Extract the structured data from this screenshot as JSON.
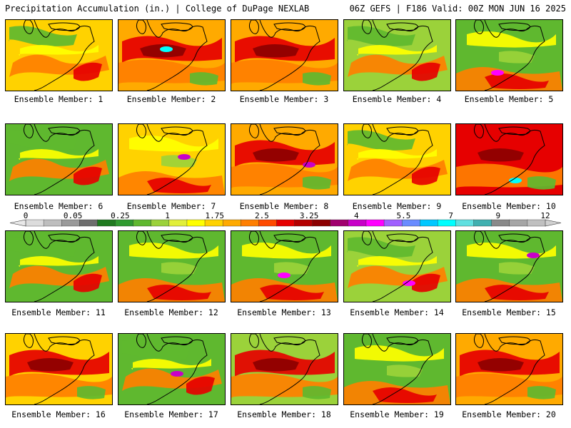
{
  "header": {
    "title": "Precipitation Accumulation (in.) | College of DuPage NEXLAB",
    "run_info": "06Z GEFS | F186 Valid: 00Z MON JUN 16 2025"
  },
  "colorbar": {
    "tick_labels": [
      "0",
      "0.05",
      "0.25",
      "1",
      "1.75",
      "2.5",
      "3.25",
      "4",
      "5.5",
      "7",
      "9",
      "12"
    ],
    "colors": [
      "#dcdcdc",
      "#bebebe",
      "#9a9a9a",
      "#6e6e6e",
      "#1f7a1f",
      "#2f9a2f",
      "#5fb82f",
      "#9bd23a",
      "#e1ef3a",
      "#ffff00",
      "#ffd200",
      "#ffaa00",
      "#ff7f00",
      "#ff4a00",
      "#e60000",
      "#b40000",
      "#8c0000",
      "#a0006e",
      "#c800c8",
      "#ff00ff",
      "#a060ff",
      "#6a8cff",
      "#00c8ff",
      "#00ffff",
      "#60e0e0",
      "#40b0b0",
      "#8a8a8a",
      "#a6a6a6",
      "#c0c0c0"
    ]
  },
  "members": [
    {
      "label": "Ensemble Member: 1",
      "base": "#ffd200",
      "pattern": "n"
    },
    {
      "label": "Ensemble Member: 2",
      "base": "#ffaa00",
      "pattern": "w",
      "hot": "#00ffff"
    },
    {
      "label": "Ensemble Member: 3",
      "base": "#ffaa00",
      "pattern": "w"
    },
    {
      "label": "Ensemble Member: 4",
      "base": "#9bd23a",
      "pattern": "n"
    },
    {
      "label": "Ensemble Member: 5",
      "base": "#5fb82f",
      "pattern": "s",
      "hot": "#ff00ff"
    },
    {
      "label": "Ensemble Member: 6",
      "base": "#5fb82f",
      "pattern": "n"
    },
    {
      "label": "Ensemble Member: 7",
      "base": "#ffd200",
      "pattern": "s",
      "hot": "#c800c8"
    },
    {
      "label": "Ensemble Member: 8",
      "base": "#ffaa00",
      "pattern": "w",
      "hot": "#c800c8"
    },
    {
      "label": "Ensemble Member: 9",
      "base": "#ffd200",
      "pattern": "n"
    },
    {
      "label": "Ensemble Member: 10",
      "base": "#e60000",
      "pattern": "w",
      "hot": "#00ffff"
    },
    {
      "label": "Ensemble Member: 11",
      "base": "#5fb82f",
      "pattern": "n"
    },
    {
      "label": "Ensemble Member: 12",
      "base": "#5fb82f",
      "pattern": "s"
    },
    {
      "label": "Ensemble Member: 13",
      "base": "#5fb82f",
      "pattern": "s",
      "hot": "#ff00ff"
    },
    {
      "label": "Ensemble Member: 14",
      "base": "#9bd23a",
      "pattern": "n",
      "hot": "#ff00ff"
    },
    {
      "label": "Ensemble Member: 15",
      "base": "#5fb82f",
      "pattern": "s",
      "hot": "#c800c8"
    },
    {
      "label": "Ensemble Member: 16",
      "base": "#ffd200",
      "pattern": "w"
    },
    {
      "label": "Ensemble Member: 17",
      "base": "#5fb82f",
      "pattern": "n",
      "hot": "#c800c8"
    },
    {
      "label": "Ensemble Member: 18",
      "base": "#9bd23a",
      "pattern": "w"
    },
    {
      "label": "Ensemble Member: 19",
      "base": "#5fb82f",
      "pattern": "s"
    },
    {
      "label": "Ensemble Member: 20",
      "base": "#ffaa00",
      "pattern": "w"
    }
  ]
}
